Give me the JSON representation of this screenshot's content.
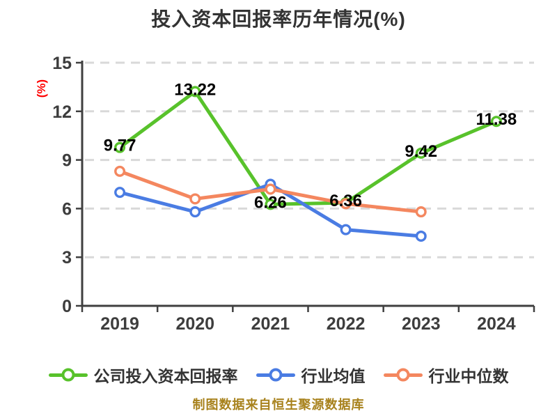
{
  "chart_data": {
    "type": "line",
    "title": "投入资本回报率历年情况(%)",
    "y_unit_label": "(%)",
    "source_note": "制图数据来自恒生聚源数据库",
    "categories": [
      "2019",
      "2020",
      "2021",
      "2022",
      "2023",
      "2024"
    ],
    "ylim": [
      0,
      15
    ],
    "yticks": [
      0,
      3,
      6,
      9,
      12,
      15
    ],
    "grid": true,
    "legend_position": "bottom",
    "series": [
      {
        "key": "company-roic",
        "name": "公司投入资本回报率",
        "color": "#58c22b",
        "values": [
          9.77,
          13.22,
          6.26,
          6.36,
          9.42,
          11.38
        ],
        "show_labels": true
      },
      {
        "key": "industry-mean",
        "name": "行业均值",
        "color": "#4a7ce3",
        "values": [
          7.0,
          5.8,
          7.5,
          4.7,
          4.3,
          null
        ],
        "show_labels": false
      },
      {
        "key": "industry-median",
        "name": "行业中位数",
        "color": "#f4875f",
        "values": [
          8.3,
          6.6,
          7.2,
          6.3,
          5.8,
          null
        ],
        "show_labels": false
      }
    ],
    "colors": {
      "background": "#ffffff",
      "title": "#333333",
      "axis": "#3f3f3f",
      "tick_label": "#3d3d3d",
      "data_label": "#000000",
      "grid": "#d9d9d9",
      "y_unit_label": "#ff0000",
      "source_note": "#a8821d",
      "legend_text": "#333333"
    }
  }
}
